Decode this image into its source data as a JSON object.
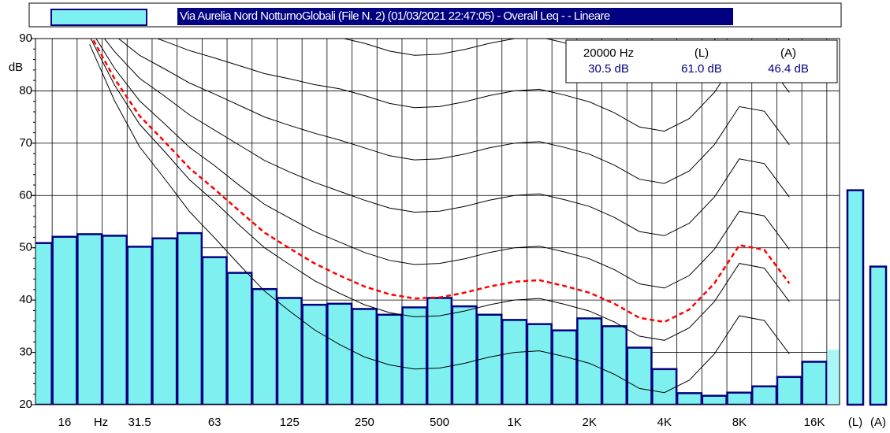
{
  "chart_data": {
    "type": "bar",
    "series": [
      {
        "name": "Via Aurelia Nord NotturnoGlobali  (File N. 2) (01/03/2021 22:47:05) - Overall Leq -  - Lineare",
        "color": "#7ff0f0",
        "edge_color": "#000080",
        "values": [
          50.9,
          52.1,
          52.6,
          52.3,
          50.2,
          51.8,
          52.8,
          48.2,
          45.2,
          42.1,
          40.4,
          39.1,
          39.3,
          38.3,
          37.2,
          38.6,
          40.4,
          38.8,
          37.2,
          36.2,
          35.4,
          34.2,
          36.5,
          35.0,
          30.9,
          26.8,
          22.2,
          21.7,
          22.3,
          23.5,
          25.3,
          28.2,
          30.5
        ]
      }
    ],
    "selected": 32,
    "selected_color": "#a8f6f6",
    "categories": [
      null,
      "16",
      null,
      null,
      "31.5",
      null,
      null,
      "63",
      null,
      null,
      "125",
      null,
      null,
      "250",
      null,
      null,
      "500",
      null,
      null,
      "1K",
      null,
      null,
      "2K",
      null,
      null,
      "4K",
      null,
      null,
      "8K",
      null,
      null,
      "16K",
      null
    ],
    "x_unit": "Hz",
    "y_label": "dB",
    "ylim": [
      20,
      90
    ],
    "yticks": [
      20,
      30,
      40,
      50,
      60,
      70,
      80,
      90
    ],
    "grid": true,
    "totals": {
      "categories": [
        "(L)",
        "(A)"
      ],
      "values": [
        61.0,
        46.4
      ]
    },
    "readout": {
      "headers": [
        "20000 Hz",
        "(L)",
        "(A)"
      ],
      "values": [
        "30.5 dB",
        "61.0 dB",
        "46.4 dB"
      ]
    },
    "reference_curves": [
      {
        "color": "#000000",
        "dashed": false,
        "values": [
          null,
          null,
          98.4,
          96.9,
          95.6,
          94.7,
          93.8,
          93.1,
          92.4,
          91.7,
          91.1,
          90.6,
          90.2,
          89.1,
          87.6,
          86.8,
          87.0,
          87.9,
          89.1,
          90,
          90.3,
          89.2,
          87.9,
          85.8,
          83.1,
          82.3,
          84.7,
          89.7,
          97,
          96.1,
          89.7,
          null,
          null
        ]
      },
      {
        "color": "#000000",
        "dashed": false,
        "values": [
          null,
          null,
          96.8,
          93.7,
          91.2,
          89.5,
          87.7,
          86.3,
          84.8,
          83.3,
          82.3,
          81.2,
          80.4,
          79.1,
          77.6,
          76.8,
          77.0,
          77.9,
          79.1,
          80,
          80.3,
          79.2,
          77.9,
          75.8,
          73.1,
          72.3,
          74.7,
          79.7,
          87,
          86.1,
          79.7,
          null,
          null
        ]
      },
      {
        "color": "#000000",
        "dashed": false,
        "values": [
          null,
          null,
          95.2,
          90.6,
          86.8,
          84.2,
          81.5,
          79.4,
          77.2,
          75.0,
          73.4,
          71.9,
          70.6,
          69.1,
          67.6,
          66.8,
          67.0,
          67.9,
          69.1,
          70,
          70.3,
          69.2,
          67.9,
          65.8,
          63.1,
          62.3,
          64.7,
          69.7,
          77,
          76.1,
          69.7,
          null,
          null
        ]
      },
      {
        "color": "#000000",
        "dashed": false,
        "values": [
          null,
          null,
          93.6,
          87.5,
          82.4,
          79.0,
          75.4,
          72.5,
          69.6,
          66.7,
          64.5,
          62.5,
          60.8,
          59.1,
          57.6,
          56.8,
          57.0,
          57.9,
          59.1,
          60,
          60.3,
          59.2,
          57.9,
          55.8,
          53.1,
          52.3,
          54.7,
          59.7,
          67,
          66.1,
          59.7,
          null,
          null
        ]
      },
      {
        "color": "#000000",
        "dashed": false,
        "values": [
          null,
          null,
          92.0,
          84.3,
          78.1,
          73.7,
          69.2,
          65.7,
          61.9,
          58.3,
          55.7,
          53.1,
          51.1,
          49.1,
          47.6,
          46.8,
          47.0,
          47.9,
          49.1,
          50,
          50.3,
          49.2,
          47.9,
          45.8,
          43.1,
          42.3,
          44.7,
          49.7,
          57,
          56.1,
          49.7,
          null,
          null
        ]
      },
      {
        "color": "#000000",
        "dashed": false,
        "values": [
          null,
          null,
          90.4,
          81.1,
          73.6,
          68.4,
          63.0,
          58.8,
          54.3,
          50.0,
          46.8,
          43.7,
          41.3,
          39.1,
          37.6,
          36.8,
          37.0,
          37.9,
          39.1,
          40,
          40.3,
          39.2,
          37.9,
          35.8,
          33.1,
          32.3,
          34.7,
          39.7,
          47,
          46.1,
          39.7,
          null,
          null
        ]
      },
      {
        "color": "#000000",
        "dashed": false,
        "values": [
          null,
          null,
          88.9,
          78.1,
          69.3,
          63.2,
          56.9,
          51.9,
          46.7,
          41.7,
          37.9,
          34.3,
          31.5,
          29.1,
          27.6,
          26.8,
          27.0,
          27.9,
          29.1,
          30,
          30.3,
          29.2,
          27.9,
          25.8,
          23.1,
          22.3,
          24.7,
          29.7,
          37,
          36.1,
          29.7,
          null,
          null
        ]
      },
      {
        "color": "#ff0000",
        "dashed": true,
        "values": [
          null,
          null,
          91,
          82.3,
          75.2,
          70.3,
          65.2,
          61.2,
          57,
          52.9,
          49.9,
          47,
          44.7,
          42.6,
          41.1,
          40.3,
          40.5,
          41.4,
          42.6,
          43.5,
          43.8,
          42.7,
          41.4,
          39.3,
          36.6,
          35.8,
          38.2,
          43.2,
          50.5,
          49.6,
          43.2,
          null,
          null
        ]
      }
    ]
  }
}
